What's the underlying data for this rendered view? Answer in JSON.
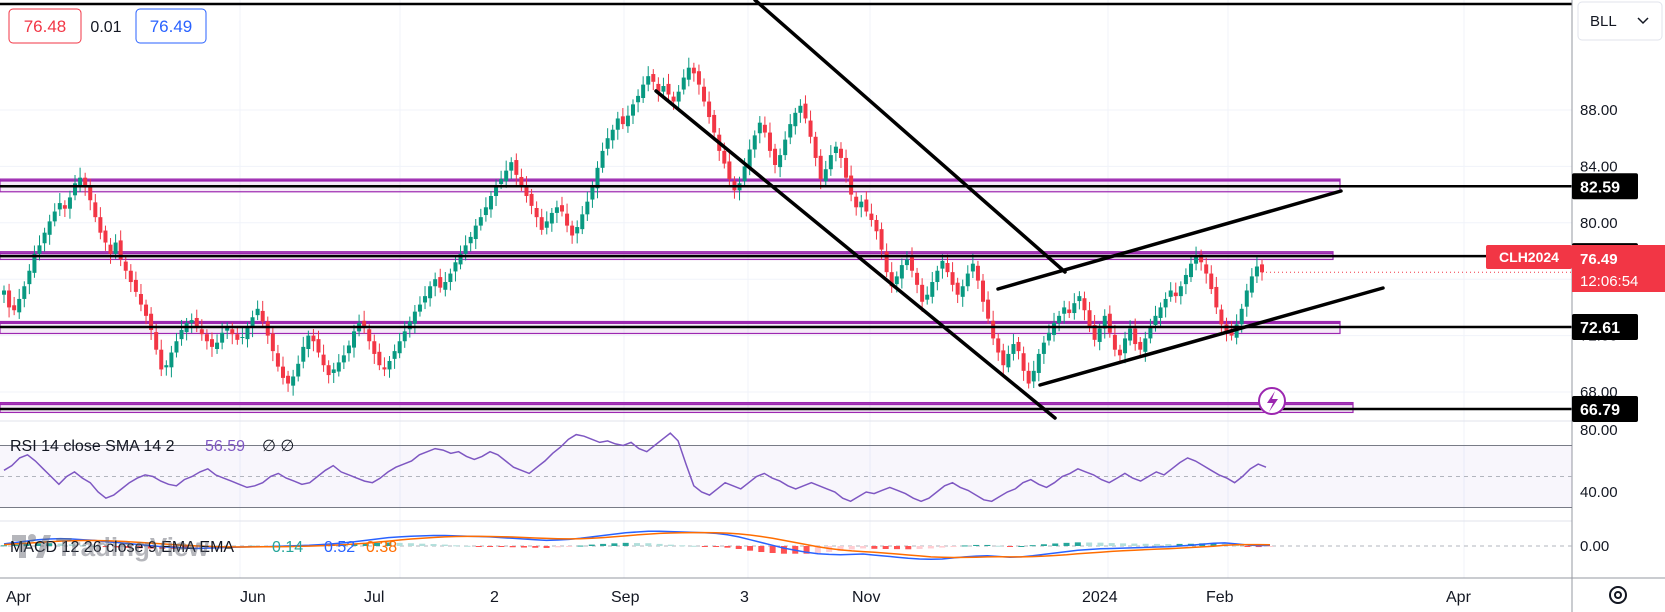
{
  "quote": {
    "bid": "76.48",
    "spread": "0.01",
    "ask": "76.49"
  },
  "toolbar": {
    "top_right_label": "BLL"
  },
  "symbol": {
    "ticker": "CLH2024",
    "last_price": "76.49",
    "countdown": "12:06:54"
  },
  "price_axis": {
    "ticks": [
      {
        "label": "88.00",
        "value": 88
      },
      {
        "label": "84.00",
        "value": 84
      },
      {
        "label": "80.00",
        "value": 80
      },
      {
        "label": "76.00",
        "value": 76
      },
      {
        "label": "72.00",
        "value": 72
      },
      {
        "label": "68.00",
        "value": 68
      }
    ]
  },
  "levels": [
    {
      "label": "82.59",
      "value": 82.59,
      "zone": [
        82.2,
        83.1
      ]
    },
    {
      "label": "77.64",
      "value": 77.64,
      "zone": [
        77.4,
        77.95
      ]
    },
    {
      "label": "72.61",
      "value": 72.61,
      "zone": [
        72.15,
        73.0
      ]
    },
    {
      "label": "66.79",
      "value": 66.79,
      "zone": [
        66.55,
        67.25
      ]
    }
  ],
  "time_axis": {
    "labels": [
      "Apr",
      "Jun",
      "Jul",
      "2",
      "Sep",
      "3",
      "Nov",
      "2024",
      "Feb",
      "Apr"
    ]
  },
  "rsi": {
    "title": "RSI 14 close SMA 14 2",
    "value": "56.59",
    "extra": "∅ ∅",
    "ticks": [
      {
        "label": "80.00",
        "value": 80
      },
      {
        "label": "40.00",
        "value": 40
      }
    ],
    "bands": [
      70,
      30
    ],
    "series": [
      54,
      57,
      62,
      64,
      60,
      55,
      50,
      45,
      50,
      53,
      49,
      46,
      40,
      36,
      38,
      42,
      46,
      49,
      51,
      50,
      47,
      45,
      44,
      48,
      50,
      53,
      55,
      51,
      49,
      47,
      45,
      43,
      44,
      46,
      50,
      52,
      49,
      47,
      45,
      46,
      50,
      54,
      57,
      53,
      51,
      49,
      47,
      46,
      49,
      53,
      56,
      58,
      60,
      64,
      66,
      68,
      67,
      65,
      66,
      63,
      61,
      63,
      66,
      64,
      60,
      56,
      54,
      52,
      56,
      60,
      65,
      69,
      74,
      77,
      76,
      74,
      72,
      73,
      71,
      70,
      72,
      68,
      66,
      70,
      74,
      78,
      73,
      58,
      44,
      40,
      38,
      42,
      46,
      44,
      42,
      46,
      50,
      52,
      49,
      47,
      44,
      42,
      44,
      46,
      44,
      42,
      40,
      36,
      34,
      37,
      40,
      39,
      41,
      43,
      41,
      39,
      36,
      34,
      36,
      40,
      44,
      46,
      43,
      41,
      38,
      35,
      34,
      37,
      40,
      42,
      46,
      48,
      45,
      43,
      46,
      50,
      52,
      55,
      53,
      51,
      48,
      46,
      49,
      52,
      49,
      47,
      50,
      53,
      51,
      55,
      59,
      62,
      60,
      57,
      54,
      51,
      49,
      46,
      50,
      55,
      58,
      56
    ]
  },
  "macd": {
    "title": "MACD 12 26 close 9 EMA EMA",
    "values": [
      "0.14",
      "0.52",
      "0.38"
    ],
    "ticks": [
      {
        "label": "0.00",
        "value": 0
      }
    ],
    "macd_line": [
      0.3,
      0.5,
      0.7,
      0.9,
      1.0,
      1.05,
      1.0,
      0.9,
      0.8,
      0.6,
      0.5,
      0.35,
      0.2,
      0.05,
      -0.1,
      -0.2,
      -0.3,
      -0.35,
      -0.3,
      -0.25,
      -0.2,
      -0.15,
      -0.1,
      -0.1,
      -0.05,
      0,
      0.05,
      0.1,
      0.2,
      0.3,
      0.45,
      0.6,
      0.8,
      1.0,
      1.2,
      1.3,
      1.4,
      1.45,
      1.5,
      1.5,
      1.45,
      1.4,
      1.35,
      1.3,
      1.2,
      1.1,
      1.0,
      0.9,
      0.8,
      0.85,
      0.95,
      1.1,
      1.3,
      1.5,
      1.7,
      1.9,
      2.0,
      2.1,
      2.1,
      2.05,
      2.0,
      1.95,
      1.9,
      1.8,
      1.6,
      1.3,
      0.9,
      0.5,
      0.1,
      -0.3,
      -0.6,
      -0.9,
      -1.1,
      -1.2,
      -1.25,
      -1.2,
      -1.15,
      -1.3,
      -1.45,
      -1.6,
      -1.75,
      -1.85,
      -1.9,
      -1.85,
      -1.7,
      -1.55,
      -1.45,
      -1.4,
      -1.5,
      -1.6,
      -1.55,
      -1.4,
      -1.2,
      -1.0,
      -0.8,
      -0.6,
      -0.5,
      -0.4,
      -0.35,
      -0.3,
      -0.25,
      -0.2,
      -0.15,
      -0.1,
      0.0,
      0.1,
      0.25,
      0.4,
      0.45,
      0.3,
      0.15,
      0.05,
      0.1
    ],
    "signal_line": [
      0.2,
      0.3,
      0.4,
      0.5,
      0.6,
      0.7,
      0.75,
      0.78,
      0.78,
      0.75,
      0.7,
      0.62,
      0.52,
      0.42,
      0.3,
      0.2,
      0.1,
      0.02,
      -0.05,
      -0.1,
      -0.13,
      -0.14,
      -0.13,
      -0.12,
      -0.1,
      -0.08,
      -0.05,
      -0.02,
      0.03,
      0.1,
      0.18,
      0.28,
      0.4,
      0.55,
      0.7,
      0.85,
      1.0,
      1.12,
      1.22,
      1.3,
      1.35,
      1.37,
      1.37,
      1.36,
      1.33,
      1.28,
      1.22,
      1.15,
      1.08,
      1.04,
      1.02,
      1.04,
      1.1,
      1.2,
      1.32,
      1.45,
      1.58,
      1.7,
      1.8,
      1.86,
      1.9,
      1.92,
      1.92,
      1.9,
      1.84,
      1.73,
      1.57,
      1.36,
      1.1,
      0.8,
      0.5,
      0.2,
      -0.1,
      -0.35,
      -0.55,
      -0.7,
      -0.8,
      -0.9,
      -1.02,
      -1.15,
      -1.28,
      -1.42,
      -1.55,
      -1.62,
      -1.65,
      -1.63,
      -1.6,
      -1.55,
      -1.54,
      -1.55,
      -1.55,
      -1.52,
      -1.45,
      -1.36,
      -1.25,
      -1.12,
      -1.0,
      -0.88,
      -0.77,
      -0.68,
      -0.6,
      -0.52,
      -0.45,
      -0.38,
      -0.3,
      -0.22,
      -0.13,
      -0.03,
      0.1,
      0.18,
      0.2,
      0.2,
      0.18
    ]
  },
  "chart_data": {
    "type": "candlestick",
    "title": "",
    "symbol": "CLH2024",
    "x_range": [
      "Mar 2023",
      "Apr 2024"
    ],
    "ylim": [
      64.5,
      91.5
    ],
    "closes": [
      75.2,
      74.0,
      73.8,
      74.6,
      75.5,
      76.6,
      77.8,
      78.4,
      79.3,
      80.1,
      80.8,
      81.4,
      81.0,
      81.8,
      82.8,
      83.2,
      82.5,
      81.6,
      80.4,
      79.3,
      78.6,
      77.8,
      78.6,
      77.4,
      76.6,
      75.8,
      75.1,
      74.2,
      73.4,
      72.4,
      71.0,
      69.6,
      69.9,
      70.8,
      71.6,
      72.4,
      72.9,
      73.1,
      72.6,
      72.1,
      71.6,
      71.2,
      71.5,
      72.2,
      72.6,
      72.1,
      71.7,
      71.9,
      72.6,
      73.3,
      73.9,
      73.0,
      72.0,
      70.9,
      69.8,
      69.0,
      68.6,
      69.1,
      70.0,
      71.2,
      72.0,
      71.6,
      70.8,
      69.9,
      69.2,
      69.6,
      70.1,
      70.6,
      71.3,
      72.3,
      72.9,
      72.6,
      71.6,
      70.7,
      69.9,
      69.6,
      70.2,
      70.9,
      71.6,
      72.3,
      73.0,
      73.7,
      74.2,
      74.8,
      75.5,
      76.0,
      75.4,
      75.8,
      76.4,
      77.2,
      77.8,
      78.4,
      79.0,
      79.8,
      80.4,
      81.1,
      81.9,
      82.6,
      83.1,
      83.7,
      84.3,
      83.4,
      82.6,
      81.9,
      81.2,
      80.4,
      79.5,
      80.1,
      80.7,
      81.1,
      80.8,
      79.8,
      79.1,
      79.7,
      80.6,
      81.5,
      82.6,
      83.9,
      85.1,
      86.0,
      86.6,
      87.4,
      87.0,
      87.6,
      88.4,
      89.0,
      89.8,
      90.4,
      90.0,
      89.3,
      89.7,
      89.1,
      88.6,
      89.3,
      90.3,
      91.0,
      90.6,
      89.8,
      88.6,
      87.5,
      86.4,
      85.1,
      84.2,
      83.1,
      82.3,
      82.8,
      84.0,
      85.2,
      86.2,
      87.1,
      86.4,
      85.1,
      84.1,
      84.8,
      85.9,
      87.0,
      87.8,
      88.3,
      87.4,
      86.1,
      84.6,
      83.1,
      83.8,
      84.8,
      85.4,
      84.6,
      83.2,
      82.0,
      81.1,
      81.5,
      80.8,
      80.2,
      79.4,
      78.1,
      76.5,
      75.5,
      76.2,
      77.0,
      77.4,
      76.6,
      75.6,
      74.4,
      74.9,
      75.8,
      76.6,
      77.3,
      76.5,
      75.6,
      74.9,
      75.5,
      76.4,
      77.1,
      75.9,
      74.4,
      73.2,
      71.8,
      70.8,
      69.9,
      70.7,
      71.4,
      70.9,
      69.5,
      68.6,
      69.5,
      70.7,
      71.5,
      72.2,
      72.9,
      73.4,
      74.0,
      73.6,
      74.3,
      74.8,
      73.8,
      72.6,
      71.7,
      72.5,
      73.4,
      72.2,
      71.0,
      70.6,
      71.8,
      72.5,
      71.4,
      71.0,
      71.8,
      72.6,
      73.4,
      74.0,
      74.6,
      75.2,
      74.8,
      75.5,
      76.3,
      77.1,
      77.6,
      77.2,
      76.4,
      75.3,
      74.0,
      72.8,
      72.3,
      72.0,
      72.8,
      73.9,
      75.2,
      76.2,
      76.9,
      76.49
    ]
  }
}
